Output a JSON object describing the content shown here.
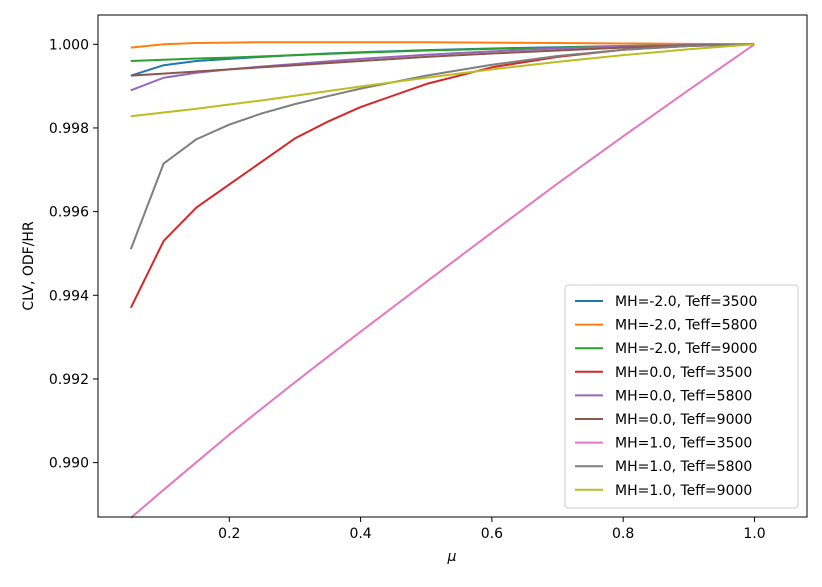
{
  "chart_data": {
    "type": "line",
    "title": "",
    "xlabel": "μ",
    "ylabel": "CLV, ODF/HR",
    "xlim": [
      0.0,
      1.08
    ],
    "ylim": [
      0.9887,
      1.0007
    ],
    "xticks": [
      0.2,
      0.4,
      0.6,
      0.8,
      1.0
    ],
    "xtick_labels": [
      "0.2",
      "0.4",
      "0.6",
      "0.8",
      "1.0"
    ],
    "yticks": [
      0.99,
      0.992,
      0.994,
      0.996,
      0.998,
      1.0
    ],
    "ytick_labels": [
      "0.990",
      "0.992",
      "0.994",
      "0.996",
      "0.998",
      "1.000"
    ],
    "grid": false,
    "legend_position": "lower-right",
    "x": [
      0.05,
      0.1,
      0.15,
      0.2,
      0.25,
      0.3,
      0.35,
      0.4,
      0.5,
      0.6,
      0.7,
      0.8,
      0.9,
      1.0
    ],
    "series": [
      {
        "name": "MH=-2.0, Teff=3500",
        "color": "#1f77b4",
        "values": [
          0.99925,
          0.9995,
          0.9996,
          0.99965,
          0.9997,
          0.99974,
          0.99978,
          0.99981,
          0.99986,
          0.9999,
          0.99993,
          0.99996,
          0.99998,
          1.0
        ]
      },
      {
        "name": "MH=-2.0, Teff=5800",
        "color": "#ff7f0e",
        "values": [
          0.99992,
          1.0,
          1.00003,
          1.00004,
          1.00005,
          1.00005,
          1.00005,
          1.00005,
          1.00005,
          1.00004,
          1.00003,
          1.00002,
          1.00001,
          1.0
        ]
      },
      {
        "name": "MH=-2.0, Teff=9000",
        "color": "#2ca02c",
        "values": [
          0.9996,
          0.99963,
          0.99966,
          0.99968,
          0.99971,
          0.99974,
          0.99977,
          0.9998,
          0.99985,
          0.99989,
          0.99992,
          0.99995,
          0.99998,
          1.0
        ]
      },
      {
        "name": "MH=0.0, Teff=3500",
        "color": "#d62728",
        "values": [
          0.9937,
          0.9953,
          0.9961,
          0.99665,
          0.9972,
          0.99775,
          0.99815,
          0.9985,
          0.99905,
          0.99945,
          0.9997,
          0.99987,
          0.99996,
          1.0
        ]
      },
      {
        "name": "MH=0.0, Teff=5800",
        "color": "#9467bd",
        "values": [
          0.9989,
          0.9992,
          0.99932,
          0.9994,
          0.99947,
          0.99953,
          0.99959,
          0.99965,
          0.99975,
          0.99983,
          0.9999,
          0.99995,
          0.99998,
          1.0
        ]
      },
      {
        "name": "MH=0.0, Teff=9000",
        "color": "#8c564b",
        "values": [
          0.99925,
          0.9993,
          0.99935,
          0.9994,
          0.99945,
          0.9995,
          0.99955,
          0.9996,
          0.9997,
          0.99978,
          0.99985,
          0.99992,
          0.99997,
          1.0
        ]
      },
      {
        "name": "MH=1.0, Teff=3500",
        "color": "#e377c2",
        "values": [
          0.98868,
          0.98935,
          0.99001,
          0.99067,
          0.9913,
          0.99192,
          0.99253,
          0.99313,
          0.99432,
          0.9955,
          0.99667,
          0.9978,
          0.99891,
          1.0
        ]
      },
      {
        "name": "MH=1.0, Teff=5800",
        "color": "#7f7f7f",
        "values": [
          0.9951,
          0.99715,
          0.99773,
          0.99808,
          0.99835,
          0.99857,
          0.99876,
          0.99894,
          0.99925,
          0.99951,
          0.99972,
          0.99987,
          0.99996,
          1.0
        ]
      },
      {
        "name": "MH=1.0, Teff=9000",
        "color": "#bcbd22",
        "values": [
          0.99828,
          0.99837,
          0.99846,
          0.99856,
          0.99866,
          0.99877,
          0.99888,
          0.99899,
          0.9992,
          0.9994,
          0.99958,
          0.99974,
          0.99988,
          1.0
        ]
      }
    ]
  }
}
